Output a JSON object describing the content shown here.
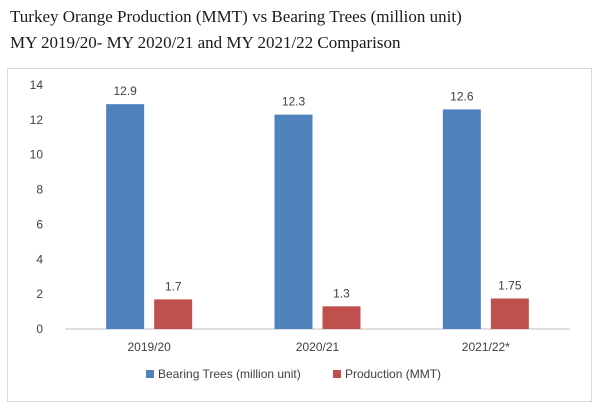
{
  "chart_data": {
    "type": "bar",
    "title": "Turkey Orange Production (MMT) vs Bearing Trees (million unit)",
    "subtitle": "MY 2019/20- MY 2020/21 and MY 2021/22 Comparison",
    "xlabel": "",
    "ylabel": "",
    "categories": [
      "2019/20",
      "2020/21",
      "2021/22*"
    ],
    "series": [
      {
        "name": "Bearing Trees (million unit)",
        "values": [
          12.9,
          12.3,
          12.6
        ],
        "labels": [
          "12.9",
          "12.3",
          "12.6"
        ],
        "color": "#4f81bd"
      },
      {
        "name": "Production (MMT)",
        "values": [
          1.7,
          1.3,
          1.75
        ],
        "labels": [
          "1.7",
          "1.3",
          "1.75"
        ],
        "color": "#c0504d"
      }
    ],
    "ylim": [
      0,
      14
    ],
    "yticks": [
      0,
      2,
      4,
      6,
      8,
      10,
      12,
      14
    ],
    "grid": false,
    "legend_position": "bottom",
    "axis_color": "#bfbfbf"
  }
}
